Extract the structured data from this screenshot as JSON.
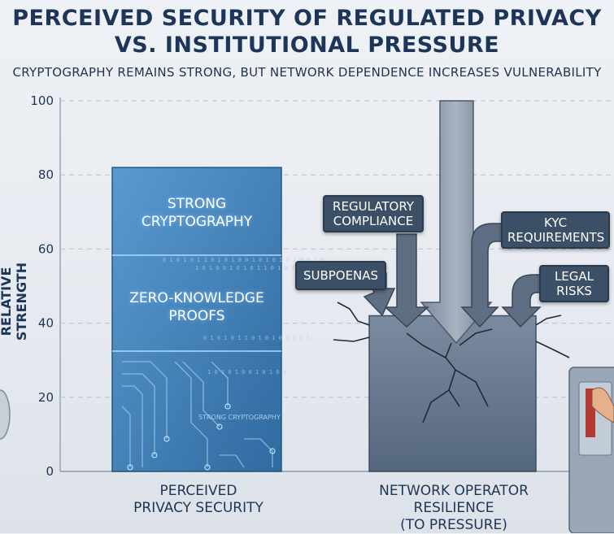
{
  "title_line1": "PERCEIVED SECURITY OF REGULATED PRIVACY",
  "title_line2": "VS. INSTITUTIONAL PRESSURE",
  "subtitle": "CRYPTOGRAPHY REMAINS STRONG, BUT NETWORK DEPENDENCE INCREASES VULNERABILITY",
  "chart_data": {
    "type": "bar",
    "title": "PERCEIVED SECURITY OF REGULATED PRIVACY VS. INSTITUTIONAL PRESSURE",
    "subtitle": "CRYPTOGRAPHY REMAINS STRONG, BUT NETWORK DEPENDENCE INCREASES VULNERABILITY",
    "xlabel": "",
    "ylabel": "RELATIVE STRENGTH",
    "ylim": [
      0,
      100
    ],
    "yticks": [
      0,
      20,
      40,
      60,
      80,
      100
    ],
    "grid": true,
    "categories": [
      "PERCEIVED PRIVACY SECURITY",
      "NETWORK OPERATOR RESILIENCE (TO PRESSURE)"
    ],
    "category_lines": [
      [
        "PERCEIVED",
        "PRIVACY SECURITY"
      ],
      [
        "NETWORK OPERATOR",
        "RESILIENCE",
        "(TO PRESSURE)"
      ]
    ],
    "values": [
      82,
      42
    ],
    "bar_annotations": {
      "bar1": [
        "STRONG CRYPTOGRAPHY",
        "ZERO-KNOWLEDGE PROOFS"
      ],
      "bar1_lines": [
        [
          "STRONG",
          "CRYPTOGRAPHY"
        ],
        [
          "ZERO-KNOWLEDGE",
          "PROOFS"
        ]
      ],
      "bar1_watermark": "STRONG CRYPTOGRAPHY",
      "pressures": [
        "REGULATORY COMPLIANCE",
        "SUBPOENAS",
        "KYC REQUIREMENTS",
        "LEGAL RISKS"
      ],
      "pressure_lines": [
        [
          "REGULATORY",
          "COMPLIANCE"
        ],
        [
          "SUBPOENAS"
        ],
        [
          "KYC",
          "REQUIREMENTS"
        ],
        [
          "LEGAL",
          "RISKS"
        ]
      ]
    },
    "colors": {
      "bar1": "#3f7fb5",
      "bar2": "#6d7f96",
      "callout": "#3b4f66",
      "title": "#1d3557"
    }
  }
}
